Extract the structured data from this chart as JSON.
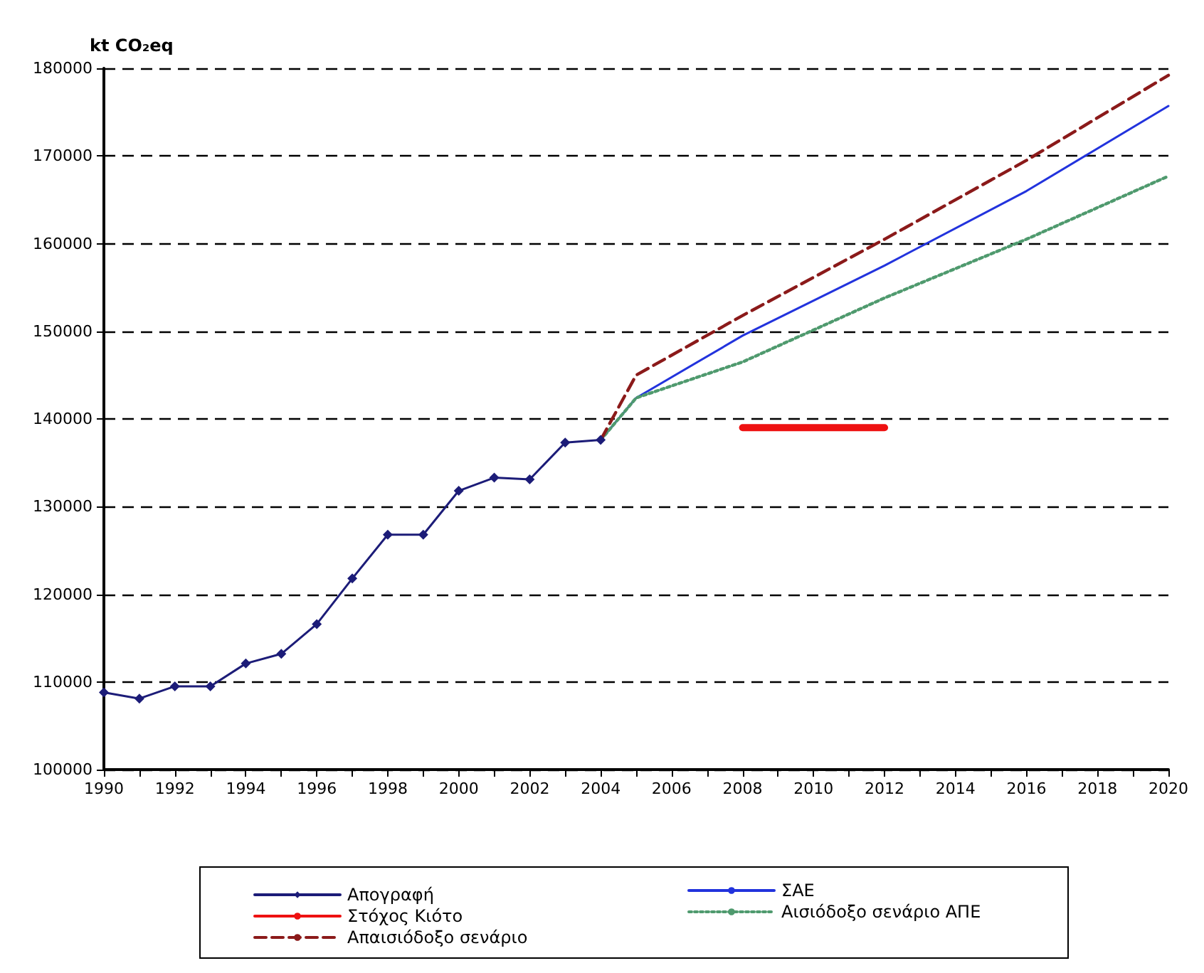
{
  "chart_data": {
    "type": "line",
    "ylabel": "kt CO₂eq",
    "xlim": [
      1990,
      2020
    ],
    "xticks": [
      1990,
      {
        "value": 1991,
        "label": null
      },
      1992,
      {
        "value": 1993,
        "label": null
      },
      1994,
      {
        "value": 1995,
        "label": null
      },
      1996,
      {
        "value": 1997,
        "label": null
      },
      1998,
      {
        "value": 1999,
        "label": null
      },
      2000,
      {
        "value": 2001,
        "label": null
      },
      2002,
      {
        "value": 2003,
        "label": null
      },
      2004,
      {
        "value": 2005,
        "label": null
      },
      2006,
      {
        "value": 2007,
        "label": null
      },
      2008,
      {
        "value": 2009,
        "label": null
      },
      2010,
      {
        "value": 2011,
        "label": null
      },
      2012,
      {
        "value": 2013,
        "label": null
      },
      2014,
      {
        "value": 2015,
        "label": null
      },
      2016,
      {
        "value": 2017,
        "label": null
      },
      2018,
      {
        "value": 2019,
        "label": null
      },
      2020
    ],
    "ylim": [
      100000,
      180000
    ],
    "yticks": [
      100000,
      110000,
      120000,
      130000,
      140000,
      150000,
      160000,
      170000,
      180000
    ],
    "grid": "y",
    "legend": "bottom",
    "series": [
      {
        "name": "Απογραφή",
        "color": "#1c1c78",
        "marker": "diamond",
        "line_style": "solid",
        "x": [
          1990,
          1991,
          1992,
          1993,
          1994,
          1995,
          1996,
          1997,
          1998,
          1999,
          2000,
          2001,
          2002,
          2003,
          2004
        ],
        "values": [
          108800,
          108100,
          109500,
          109500,
          112100,
          113200,
          116600,
          121800,
          126800,
          126800,
          131800,
          133300,
          133100,
          137300,
          137600
        ]
      },
      {
        "name": "ΣΑΕ",
        "color": "#2233dd",
        "marker": "none",
        "line_style": "solid",
        "x": [
          2004,
          2005,
          2008,
          2012,
          2016,
          2020
        ],
        "values": [
          137600,
          142400,
          149500,
          157500,
          166000,
          175700
        ]
      },
      {
        "name": "Στόχος Κιότο",
        "color": "#ee1111",
        "marker": "none",
        "line_style": "solid",
        "x": [
          2008,
          2012
        ],
        "values": [
          139000,
          139000
        ]
      },
      {
        "name": "Αισιόδοξο σενάριο ΑΠΕ",
        "color": "#4f9a6e",
        "marker": "none",
        "line_style": "dotted",
        "x": [
          2004,
          2005,
          2008,
          2012,
          2016,
          2020
        ],
        "values": [
          137600,
          142400,
          146500,
          153800,
          160500,
          167700
        ]
      },
      {
        "name": "Απαισιόδοξο σενάριο",
        "color": "#8b1a1a",
        "marker": "none",
        "line_style": "dashed",
        "x": [
          2004,
          2005,
          2008,
          2012,
          2016,
          2020
        ],
        "values": [
          137600,
          145000,
          151800,
          160500,
          169500,
          179200
        ]
      }
    ]
  }
}
